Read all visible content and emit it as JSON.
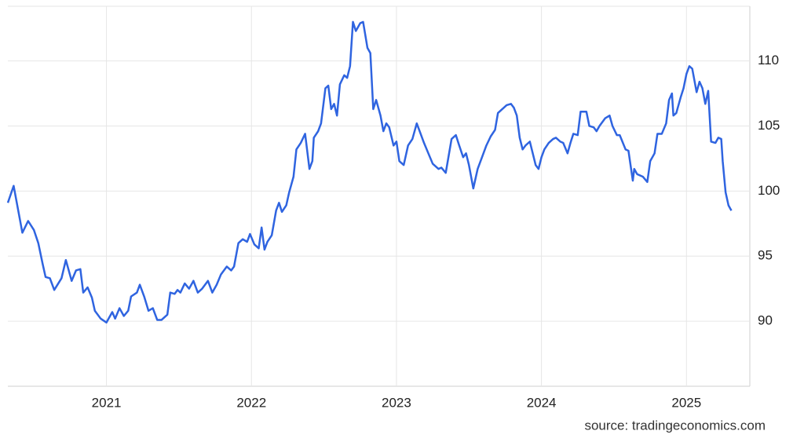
{
  "chart_data": {
    "type": "line",
    "source": "source: tradingeconomics.com",
    "x": [
      2020.32,
      2020.36,
      2020.42,
      2020.46,
      2020.5,
      2020.53,
      2020.56,
      2020.58,
      2020.61,
      2020.64,
      2020.69,
      2020.72,
      2020.76,
      2020.79,
      2020.82,
      2020.84,
      2020.87,
      2020.9,
      2020.92,
      2020.96,
      2021.0,
      2021.04,
      2021.06,
      2021.09,
      2021.12,
      2021.15,
      2021.17,
      2021.21,
      2021.23,
      2021.26,
      2021.29,
      2021.32,
      2021.35,
      2021.38,
      2021.42,
      2021.44,
      2021.47,
      2021.49,
      2021.51,
      2021.54,
      2021.57,
      2021.6,
      2021.63,
      2021.66,
      2021.7,
      2021.73,
      2021.76,
      2021.79,
      2021.83,
      2021.86,
      2021.88,
      2021.91,
      2021.94,
      2021.97,
      2021.99,
      2022.02,
      2022.05,
      2022.07,
      2022.09,
      2022.11,
      2022.14,
      2022.17,
      2022.19,
      2022.21,
      2022.24,
      2022.26,
      2022.29,
      2022.31,
      2022.34,
      2022.37,
      2022.4,
      2022.42,
      2022.43,
      2022.46,
      2022.48,
      2022.51,
      2022.53,
      2022.55,
      2022.57,
      2022.59,
      2022.61,
      2022.64,
      2022.66,
      2022.68,
      2022.7,
      2022.72,
      2022.75,
      2022.77,
      2022.8,
      2022.82,
      2022.84,
      2022.86,
      2022.89,
      2022.91,
      2022.93,
      2022.95,
      2022.98,
      2023.0,
      2023.02,
      2023.05,
      2023.08,
      2023.11,
      2023.14,
      2023.16,
      2023.19,
      2023.22,
      2023.25,
      2023.29,
      2023.31,
      2023.34,
      2023.36,
      2023.38,
      2023.41,
      2023.43,
      2023.46,
      2023.48,
      2023.5,
      2023.53,
      2023.56,
      2023.59,
      2023.62,
      2023.65,
      2023.68,
      2023.7,
      2023.73,
      2023.76,
      2023.79,
      2023.81,
      2023.83,
      2023.85,
      2023.87,
      2023.89,
      2023.92,
      2023.94,
      2023.96,
      2023.98,
      2024.0,
      2024.02,
      2024.05,
      2024.08,
      2024.1,
      2024.13,
      2024.15,
      2024.18,
      2024.2,
      2024.22,
      2024.25,
      2024.27,
      2024.31,
      2024.33,
      2024.36,
      2024.38,
      2024.4,
      2024.44,
      2024.47,
      2024.49,
      2024.52,
      2024.54,
      2024.58,
      2024.6,
      2024.63,
      2024.64,
      2024.66,
      2024.7,
      2024.73,
      2024.75,
      2024.78,
      2024.8,
      2024.83,
      2024.86,
      2024.88,
      2024.9,
      2024.91,
      2024.93,
      2024.96,
      2024.98,
      2025.0,
      2025.02,
      2025.04,
      2025.07,
      2025.09,
      2025.11,
      2025.13,
      2025.15,
      2025.17,
      2025.2,
      2025.22,
      2025.24,
      2025.25,
      2025.27,
      2025.29,
      2025.31
    ],
    "values": [
      99.1,
      100.4,
      96.8,
      97.7,
      97.0,
      96.0,
      94.4,
      93.4,
      93.3,
      92.4,
      93.3,
      94.7,
      93.1,
      93.9,
      94.0,
      92.2,
      92.6,
      91.8,
      90.8,
      90.2,
      89.9,
      90.7,
      90.2,
      91.0,
      90.4,
      90.8,
      91.9,
      92.2,
      92.8,
      91.9,
      90.8,
      91.0,
      90.1,
      90.1,
      90.5,
      92.2,
      92.1,
      92.4,
      92.2,
      92.9,
      92.5,
      93.1,
      92.2,
      92.5,
      93.1,
      92.2,
      92.8,
      93.6,
      94.2,
      93.9,
      94.2,
      96.0,
      96.3,
      96.1,
      96.7,
      95.9,
      95.6,
      97.2,
      95.5,
      96.1,
      96.6,
      98.5,
      99.1,
      98.4,
      98.9,
      99.9,
      101.1,
      103.2,
      103.7,
      104.4,
      101.7,
      102.3,
      104.1,
      104.6,
      105.2,
      107.9,
      108.1,
      106.3,
      106.7,
      105.8,
      108.2,
      108.9,
      108.7,
      109.6,
      113.0,
      112.3,
      112.9,
      113.0,
      111.0,
      110.6,
      106.3,
      107.0,
      105.8,
      104.6,
      105.2,
      104.9,
      103.5,
      103.8,
      102.3,
      102.0,
      103.5,
      104.0,
      105.2,
      104.6,
      103.7,
      102.9,
      102.1,
      101.7,
      101.8,
      101.4,
      102.7,
      104.0,
      104.3,
      103.6,
      102.6,
      102.9,
      102.0,
      100.2,
      101.7,
      102.6,
      103.5,
      104.2,
      104.7,
      106.0,
      106.3,
      106.6,
      106.7,
      106.4,
      105.8,
      104.1,
      103.2,
      103.5,
      103.8,
      102.9,
      102.0,
      101.7,
      102.6,
      103.2,
      103.7,
      104.0,
      104.1,
      103.8,
      103.7,
      102.9,
      103.7,
      104.4,
      104.3,
      106.1,
      106.1,
      105.0,
      104.9,
      104.6,
      105.0,
      105.6,
      105.8,
      105.0,
      104.3,
      104.3,
      103.2,
      103.1,
      100.8,
      101.7,
      101.3,
      101.1,
      100.7,
      102.3,
      102.9,
      104.4,
      104.4,
      105.2,
      107.0,
      107.5,
      105.8,
      106.0,
      107.2,
      107.9,
      109.0,
      109.6,
      109.4,
      107.6,
      108.4,
      107.9,
      106.7,
      107.7,
      103.8,
      103.7,
      104.1,
      104.0,
      102.3,
      99.9,
      98.9,
      98.5
    ],
    "color": "#2f64e0",
    "xlim": [
      2020.32,
      2025.41
    ],
    "xticks": [
      2021,
      2022,
      2023,
      2024,
      2025
    ],
    "ylim": [
      85,
      114.2
    ],
    "yticks": [
      90,
      95,
      100,
      105,
      110
    ],
    "grid": true
  }
}
